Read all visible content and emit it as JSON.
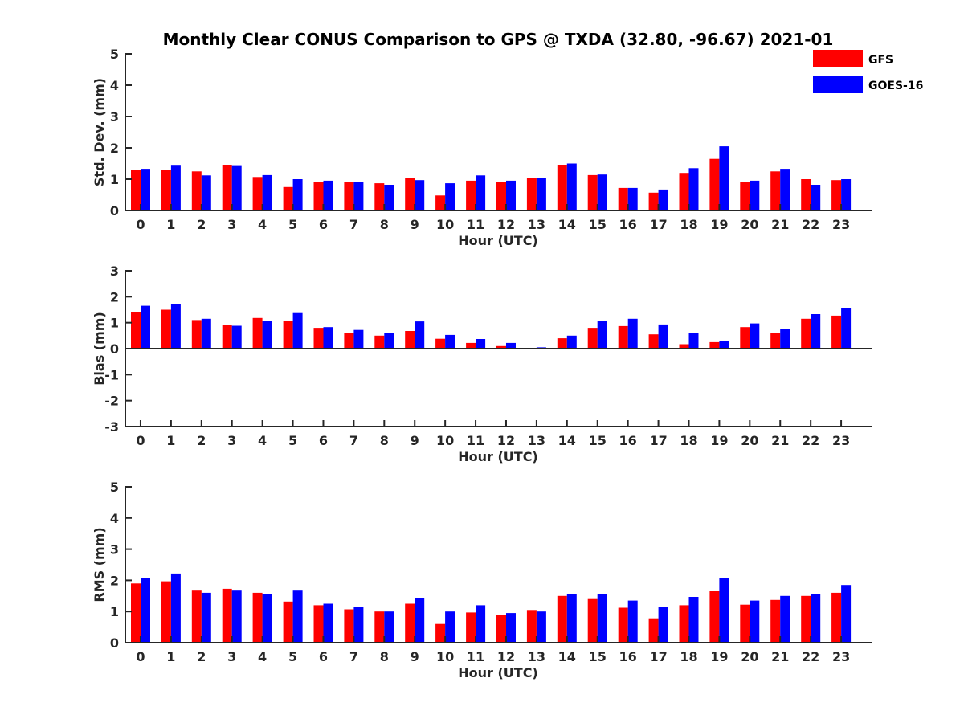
{
  "figure": {
    "title": "Monthly Clear CONUS Comparison to GPS @ TXDA (32.80, -96.67) 2021-01"
  },
  "colors": {
    "GFS": "#ff0000",
    "GOES-16": "#0000ff"
  },
  "legend": {
    "placement": "top-right",
    "entries": [
      "GFS",
      "GOES-16"
    ]
  },
  "chart_data": [
    {
      "type": "bar",
      "xlabel": "Hour (UTC)",
      "ylabel": "Std. Dev. (mm)",
      "ylim": [
        0,
        5
      ],
      "yticks": [
        0,
        1,
        2,
        3,
        4,
        5
      ],
      "categories": [
        "0",
        "1",
        "2",
        "3",
        "4",
        "5",
        "6",
        "7",
        "8",
        "9",
        "10",
        "11",
        "12",
        "13",
        "14",
        "15",
        "16",
        "17",
        "18",
        "19",
        "20",
        "21",
        "22",
        "23"
      ],
      "series": [
        {
          "name": "GFS",
          "values": [
            1.3,
            1.3,
            1.25,
            1.45,
            1.07,
            0.75,
            0.9,
            0.9,
            0.87,
            1.05,
            0.48,
            0.95,
            0.92,
            1.05,
            1.45,
            1.13,
            0.72,
            0.57,
            1.2,
            1.65,
            0.9,
            1.25,
            1.0,
            0.97
          ]
        },
        {
          "name": "GOES-16",
          "values": [
            1.33,
            1.43,
            1.12,
            1.42,
            1.13,
            1.0,
            0.95,
            0.9,
            0.82,
            0.97,
            0.87,
            1.12,
            0.95,
            1.03,
            1.5,
            1.15,
            0.72,
            0.67,
            1.35,
            2.05,
            0.95,
            1.33,
            0.82,
            1.0
          ]
        }
      ],
      "grid": false
    },
    {
      "type": "bar",
      "xlabel": "Hour (UTC)",
      "ylabel": "Bias (mm)",
      "ylim": [
        -3,
        3
      ],
      "yticks": [
        -3,
        -2,
        -1,
        0,
        1,
        2,
        3
      ],
      "categories": [
        "0",
        "1",
        "2",
        "3",
        "4",
        "5",
        "6",
        "7",
        "8",
        "9",
        "10",
        "11",
        "12",
        "13",
        "14",
        "15",
        "16",
        "17",
        "18",
        "19",
        "20",
        "21",
        "22",
        "23"
      ],
      "series": [
        {
          "name": "GFS",
          "values": [
            1.42,
            1.5,
            1.1,
            0.92,
            1.18,
            1.08,
            0.8,
            0.6,
            0.5,
            0.68,
            0.38,
            0.22,
            0.1,
            -0.03,
            0.4,
            0.8,
            0.87,
            0.55,
            0.17,
            0.25,
            0.83,
            0.62,
            1.15,
            1.27
          ]
        },
        {
          "name": "GOES-16",
          "values": [
            1.65,
            1.7,
            1.15,
            0.88,
            1.08,
            1.37,
            0.83,
            0.72,
            0.6,
            1.05,
            0.53,
            0.37,
            0.22,
            0.05,
            0.5,
            1.08,
            1.15,
            0.93,
            0.6,
            0.28,
            0.97,
            0.75,
            1.33,
            1.55
          ]
        }
      ],
      "grid": false
    },
    {
      "type": "bar",
      "xlabel": "Hour (UTC)",
      "ylabel": "RMS (mm)",
      "ylim": [
        0,
        5
      ],
      "yticks": [
        0,
        1,
        2,
        3,
        4,
        5
      ],
      "categories": [
        "0",
        "1",
        "2",
        "3",
        "4",
        "5",
        "6",
        "7",
        "8",
        "9",
        "10",
        "11",
        "12",
        "13",
        "14",
        "15",
        "16",
        "17",
        "18",
        "19",
        "20",
        "21",
        "22",
        "23"
      ],
      "series": [
        {
          "name": "GFS",
          "values": [
            1.9,
            1.97,
            1.67,
            1.73,
            1.6,
            1.32,
            1.2,
            1.07,
            1.0,
            1.25,
            0.6,
            0.97,
            0.9,
            1.05,
            1.5,
            1.4,
            1.12,
            0.78,
            1.2,
            1.65,
            1.22,
            1.37,
            1.5,
            1.6
          ]
        },
        {
          "name": "GOES-16",
          "values": [
            2.08,
            2.22,
            1.6,
            1.67,
            1.55,
            1.67,
            1.25,
            1.15,
            1.0,
            1.42,
            1.0,
            1.2,
            0.95,
            1.0,
            1.57,
            1.57,
            1.35,
            1.15,
            1.47,
            2.08,
            1.35,
            1.5,
            1.55,
            1.85
          ]
        }
      ],
      "grid": false
    }
  ]
}
